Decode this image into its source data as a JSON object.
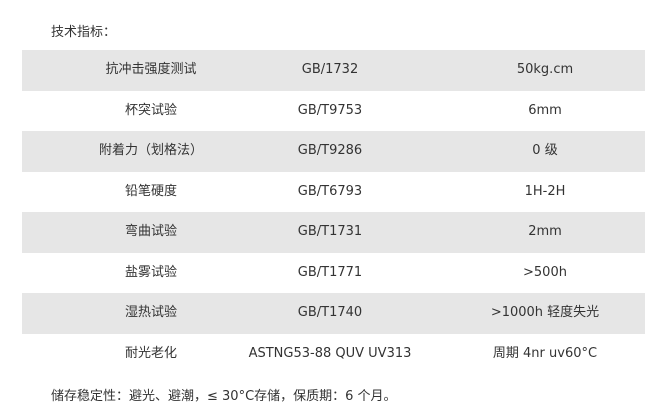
{
  "title": "技术指标：",
  "rows": [
    {
      "name": "抗冲击强度测试",
      "standard": "GB/1732",
      "value": "50kg.cm"
    },
    {
      "name": "杯突试验",
      "standard": "GB/T9753",
      "value": "6mm"
    },
    {
      "name": "附着力（划格法）",
      "standard": "GB/T9286",
      "value": "0 级"
    },
    {
      "name": "铅笔硬度",
      "standard": "GB/T6793",
      "value": "1H-2H"
    },
    {
      "name": "弯曲试验",
      "standard": "GB/T1731",
      "value": "2mm"
    },
    {
      "name": "盐雾试验",
      "standard": "GB/T1771",
      "value": ">500h"
    },
    {
      "name": "湿热试验",
      "standard": "GB/T1740",
      "value": ">1000h 轻度失光"
    },
    {
      "name": "耐光老化",
      "standard": "ASTNG53-88 QUV UV313",
      "value": "周期 4nr uv60°C"
    }
  ],
  "footer": "储存稳定性：避光、避潮，≤ 30°C存储，保质期：6 个月。",
  "colors": {
    "stripe": "#e6e6e6",
    "text": "#333333"
  }
}
